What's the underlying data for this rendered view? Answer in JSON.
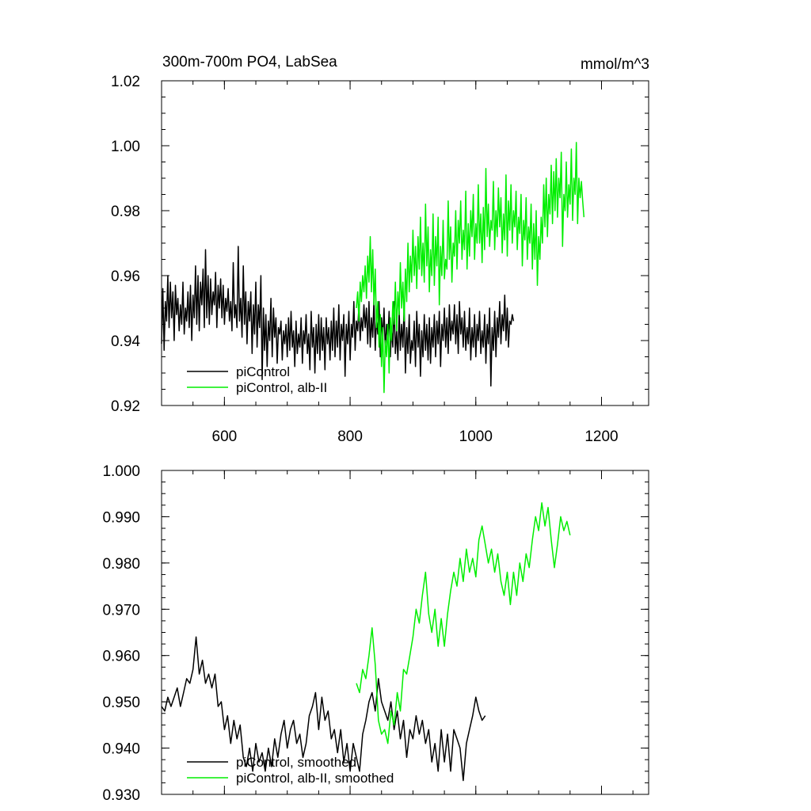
{
  "colors": {
    "piControl": "#000000",
    "albII": "#00ee00"
  },
  "chart_data": [
    {
      "type": "line",
      "title": "300m-700m PO4, LabSea",
      "units": "mmol/m^3",
      "xlim": [
        500,
        1275
      ],
      "ylim": [
        0.92,
        1.02
      ],
      "xticks": [
        600,
        800,
        1000,
        1200
      ],
      "xtick_labels": [
        "600",
        "800",
        "1000",
        "1200"
      ],
      "yticks": [
        0.92,
        0.94,
        0.96,
        0.98,
        1.0,
        1.02
      ],
      "ytick_labels": [
        "0.92",
        "0.94",
        "0.96",
        "0.98",
        "1.00",
        "1.02"
      ],
      "legend_position": "bottom-left",
      "series": [
        {
          "name": "piControl",
          "color": "#000000",
          "x_start": 500,
          "x_step": 2,
          "values": [
            0.939,
            0.956,
            0.937,
            0.952,
            0.946,
            0.96,
            0.944,
            0.958,
            0.947,
            0.955,
            0.94,
            0.957,
            0.948,
            0.953,
            0.943,
            0.951,
            0.945,
            0.958,
            0.942,
            0.95,
            0.946,
            0.955,
            0.944,
            0.957,
            0.94,
            0.954,
            0.947,
            0.963,
            0.945,
            0.96,
            0.943,
            0.958,
            0.951,
            0.962,
            0.944,
            0.968,
            0.947,
            0.96,
            0.945,
            0.959,
            0.948,
            0.955,
            0.951,
            0.961,
            0.944,
            0.957,
            0.95,
            0.959,
            0.947,
            0.957,
            0.945,
            0.953,
            0.949,
            0.956,
            0.946,
            0.952,
            0.943,
            0.964,
            0.947,
            0.951,
            0.944,
            0.969,
            0.946,
            0.953,
            0.941,
            0.963,
            0.945,
            0.955,
            0.939,
            0.952,
            0.946,
            0.955,
            0.936,
            0.951,
            0.942,
            0.958,
            0.938,
            0.951,
            0.944,
            0.96,
            0.928,
            0.95,
            0.937,
            0.948,
            0.932,
            0.946,
            0.94,
            0.953,
            0.935,
            0.95,
            0.941,
            0.947,
            0.933,
            0.944,
            0.942,
            0.946,
            0.934,
            0.943,
            0.939,
            0.945,
            0.935,
            0.947,
            0.937,
            0.949,
            0.938,
            0.943,
            0.932,
            0.946,
            0.936,
            0.942,
            0.938,
            0.947,
            0.933,
            0.943,
            0.939,
            0.948,
            0.936,
            0.942,
            0.931,
            0.949,
            0.938,
            0.944,
            0.93,
            0.945,
            0.936,
            0.948,
            0.934,
            0.947,
            0.937,
            0.944,
            0.931,
            0.947,
            0.939,
            0.944,
            0.934,
            0.946,
            0.937,
            0.95,
            0.935,
            0.946,
            0.938,
            0.951,
            0.934,
            0.945,
            0.94,
            0.948,
            0.929,
            0.945,
            0.939,
            0.949,
            0.934,
            0.945,
            0.941,
            0.952,
            0.937,
            0.946,
            0.943,
            0.951,
            0.94,
            0.947,
            0.943,
            0.951,
            0.944,
            0.95,
            0.939,
            0.952,
            0.938,
            0.947,
            0.941,
            0.953,
            0.937,
            0.947,
            0.942,
            0.952,
            0.935,
            0.947,
            0.941,
            0.95,
            0.937,
            0.945,
            0.94,
            0.949,
            0.935,
            0.944,
            0.938,
            0.952,
            0.936,
            0.943,
            0.934,
            0.949,
            0.937,
            0.945,
            0.938,
            0.951,
            0.93,
            0.944,
            0.936,
            0.948,
            0.933,
            0.94,
            0.937,
            0.946,
            0.932,
            0.949,
            0.938,
            0.945,
            0.929,
            0.943,
            0.935,
            0.948,
            0.937,
            0.945,
            0.934,
            0.947,
            0.933,
            0.944,
            0.938,
            0.948,
            0.935,
            0.946,
            0.939,
            0.949,
            0.932,
            0.945,
            0.94,
            0.95,
            0.938,
            0.947,
            0.936,
            0.951,
            0.94,
            0.946,
            0.942,
            0.951,
            0.939,
            0.948,
            0.936,
            0.952,
            0.942,
            0.947,
            0.938,
            0.949,
            0.937,
            0.944,
            0.939,
            0.95,
            0.934,
            0.944,
            0.938,
            0.948,
            0.935,
            0.945,
            0.94,
            0.949,
            0.936,
            0.943,
            0.938,
            0.948,
            0.933,
            0.945,
            0.939,
            0.95,
            0.926,
            0.944,
            0.937,
            0.949,
            0.935,
            0.947,
            0.941,
            0.952,
            0.939,
            0.948,
            0.943,
            0.954,
            0.94,
            0.95,
            0.938,
            0.946,
            0.945,
            0.948,
            0.946
          ]
        },
        {
          "name": "piControl, alb-II",
          "color": "#00ee00",
          "x_start": 810,
          "x_step": 2,
          "values": [
            0.95,
            0.955,
            0.946,
            0.958,
            0.952,
            0.96,
            0.955,
            0.963,
            0.953,
            0.966,
            0.958,
            0.972,
            0.955,
            0.968,
            0.951,
            0.962,
            0.944,
            0.952,
            0.938,
            0.948,
            0.932,
            0.944,
            0.924,
            0.94,
            0.935,
            0.945,
            0.93,
            0.947,
            0.94,
            0.952,
            0.945,
            0.958,
            0.943,
            0.955,
            0.948,
            0.964,
            0.95,
            0.958,
            0.946,
            0.962,
            0.952,
            0.97,
            0.955,
            0.966,
            0.958,
            0.974,
            0.96,
            0.969,
            0.956,
            0.972,
            0.962,
            0.978,
            0.96,
            0.97,
            0.958,
            0.982,
            0.963,
            0.975,
            0.955,
            0.968,
            0.96,
            0.979,
            0.957,
            0.972,
            0.963,
            0.978,
            0.951,
            0.969,
            0.96,
            0.977,
            0.959,
            0.965,
            0.962,
            0.983,
            0.965,
            0.975,
            0.958,
            0.97,
            0.966,
            0.98,
            0.962,
            0.977,
            0.97,
            0.983,
            0.965,
            0.974,
            0.968,
            0.986,
            0.962,
            0.976,
            0.966,
            0.98,
            0.972,
            0.985,
            0.965,
            0.976,
            0.97,
            0.988,
            0.97,
            0.979,
            0.964,
            0.981,
            0.968,
            0.993,
            0.972,
            0.982,
            0.969,
            0.977,
            0.974,
            0.989,
            0.968,
            0.98,
            0.972,
            0.987,
            0.975,
            0.984,
            0.967,
            0.979,
            0.971,
            0.991,
            0.966,
            0.983,
            0.974,
            0.988,
            0.97,
            0.98,
            0.975,
            0.986,
            0.968,
            0.978,
            0.973,
            0.985,
            0.963,
            0.977,
            0.971,
            0.984,
            0.965,
            0.975,
            0.97,
            0.982,
            0.962,
            0.976,
            0.965,
            0.98,
            0.957,
            0.972,
            0.965,
            0.978,
            0.97,
            0.988,
            0.975,
            0.99,
            0.972,
            0.985,
            0.979,
            0.994,
            0.976,
            0.992,
            0.98,
            0.996,
            0.978,
            0.99,
            0.984,
            0.998,
            0.969,
            0.985,
            0.98,
            0.995,
            0.978,
            0.988,
            0.982,
            0.999,
            0.977,
            0.99,
            0.985,
            1.001,
            0.976,
            0.99,
            0.984,
            0.989,
            0.983,
            0.978
          ]
        }
      ]
    },
    {
      "type": "line",
      "xlim": [
        500,
        1275
      ],
      "ylim": [
        0.93,
        1.0
      ],
      "xticks": [
        600,
        800,
        1000,
        1200
      ],
      "yticks": [
        0.93,
        0.94,
        0.95,
        0.96,
        0.97,
        0.98,
        0.99,
        1.0
      ],
      "ytick_labels": [
        "0.930",
        "0.940",
        "0.950",
        "0.960",
        "0.970",
        "0.980",
        "0.990",
        "1.000"
      ],
      "legend_position": "bottom-left",
      "series": [
        {
          "name": "piControl, smoothed",
          "color": "#000000",
          "x_start": 500,
          "x_step": 5,
          "values": [
            0.949,
            0.948,
            0.951,
            0.949,
            0.951,
            0.953,
            0.949,
            0.952,
            0.955,
            0.954,
            0.957,
            0.964,
            0.956,
            0.959,
            0.954,
            0.956,
            0.953,
            0.956,
            0.949,
            0.95,
            0.944,
            0.947,
            0.941,
            0.946,
            0.942,
            0.945,
            0.938,
            0.936,
            0.94,
            0.935,
            0.941,
            0.937,
            0.939,
            0.935,
            0.94,
            0.936,
            0.942,
            0.938,
            0.943,
            0.946,
            0.94,
            0.944,
            0.946,
            0.941,
            0.943,
            0.938,
            0.941,
            0.947,
            0.949,
            0.952,
            0.944,
            0.951,
            0.946,
            0.948,
            0.942,
            0.944,
            0.939,
            0.944,
            0.937,
            0.941,
            0.935,
            0.941,
            0.938,
            0.935,
            0.943,
            0.946,
            0.95,
            0.952,
            0.948,
            0.955,
            0.95,
            0.948,
            0.946,
            0.95,
            0.944,
            0.948,
            0.942,
            0.946,
            0.938,
            0.944,
            0.942,
            0.947,
            0.943,
            0.946,
            0.941,
            0.944,
            0.937,
            0.941,
            0.935,
            0.944,
            0.937,
            0.943,
            0.935,
            0.944,
            0.942,
            0.94,
            0.933,
            0.941,
            0.944,
            0.947,
            0.951,
            0.948,
            0.946,
            0.947
          ]
        },
        {
          "name": "piControl, alb-II, smoothed",
          "color": "#00ee00",
          "x_start": 810,
          "x_step": 5,
          "values": [
            0.954,
            0.952,
            0.957,
            0.955,
            0.96,
            0.966,
            0.958,
            0.946,
            0.943,
            0.944,
            0.941,
            0.948,
            0.945,
            0.952,
            0.948,
            0.957,
            0.956,
            0.96,
            0.964,
            0.97,
            0.967,
            0.973,
            0.978,
            0.969,
            0.965,
            0.97,
            0.962,
            0.968,
            0.962,
            0.969,
            0.974,
            0.978,
            0.975,
            0.981,
            0.976,
            0.983,
            0.978,
            0.981,
            0.977,
            0.985,
            0.988,
            0.984,
            0.98,
            0.983,
            0.978,
            0.982,
            0.976,
            0.973,
            0.978,
            0.971,
            0.978,
            0.973,
            0.98,
            0.976,
            0.982,
            0.979,
            0.985,
            0.99,
            0.987,
            0.993,
            0.988,
            0.992,
            0.985,
            0.979,
            0.984,
            0.99,
            0.987,
            0.989,
            0.986
          ]
        }
      ]
    }
  ]
}
